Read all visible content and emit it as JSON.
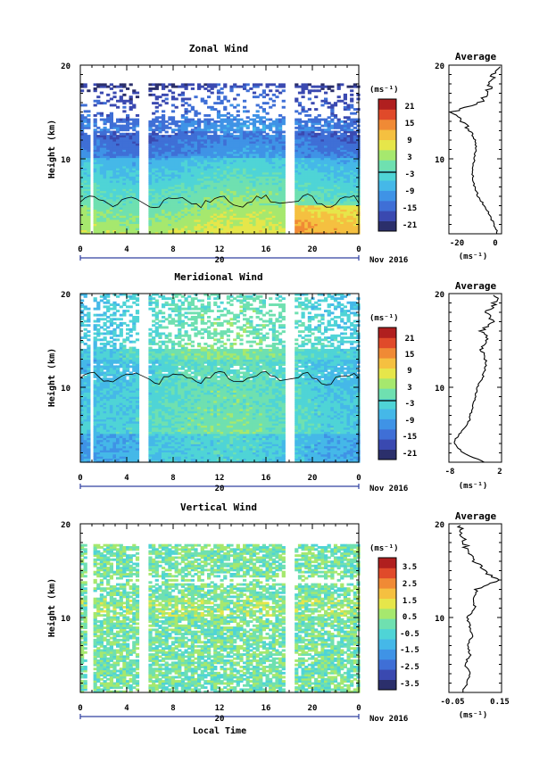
{
  "colors": {
    "scale": [
      "#2b2f6b",
      "#3a49b0",
      "#3f6fd6",
      "#3f93e6",
      "#45b8e8",
      "#4fd4d6",
      "#6fe0b0",
      "#a6e86e",
      "#e6e64a",
      "#f5c040",
      "#f08a35",
      "#e04a2a",
      "#b01f1f"
    ],
    "contour": "#000000",
    "frame": "#000000",
    "time_bar": "#3040a0"
  },
  "chart_data": [
    {
      "type": "heatmap",
      "title": "Zonal Wind",
      "ylabel": "Height (km)",
      "units_label": "(ms⁻¹)",
      "x_ticks": [
        "0",
        "4",
        "8",
        "12",
        "16",
        "20",
        "0"
      ],
      "y_ticks": [
        "20",
        "10"
      ],
      "ylim": [
        2,
        20
      ],
      "xlim_hours": [
        0,
        24
      ],
      "data_gaps_hours": [
        [
          0.9,
          1.0
        ],
        [
          5.1,
          5.8
        ],
        [
          17.6,
          18.6
        ]
      ],
      "colorbar_labels": [
        "21",
        "15",
        "9",
        "3",
        "-3",
        "-9",
        "-15",
        "-21"
      ],
      "colorbar_range": [
        -24,
        24
      ],
      "date_label": "20",
      "month_label": "Nov 2016",
      "profile": {
        "title": "Average",
        "xlabel": "(ms⁻¹)",
        "x_ticks": [
          "-20",
          "0"
        ],
        "xlim": [
          -24,
          3
        ],
        "height_km": [
          2,
          3,
          4,
          5,
          6,
          7,
          8,
          9,
          10,
          11,
          12,
          13,
          14,
          15,
          16,
          17,
          18,
          19,
          20
        ],
        "values": [
          1,
          -1,
          -3,
          -6,
          -9,
          -11,
          -11.5,
          -12,
          -11,
          -10,
          -10.5,
          -13,
          -17,
          -22,
          -8,
          -4,
          -3,
          -1,
          1
        ]
      }
    },
    {
      "type": "heatmap",
      "title": "Meridional Wind",
      "ylabel": "Height (km)",
      "units_label": "(ms⁻¹)",
      "x_ticks": [
        "0",
        "4",
        "8",
        "12",
        "16",
        "20",
        "0"
      ],
      "y_ticks": [
        "20",
        "10"
      ],
      "ylim": [
        2,
        20
      ],
      "xlim_hours": [
        0,
        24
      ],
      "data_gaps_hours": [
        [
          0.9,
          1.0
        ],
        [
          5.1,
          5.8
        ],
        [
          17.6,
          18.6
        ]
      ],
      "colorbar_labels": [
        "21",
        "15",
        "9",
        "3",
        "-3",
        "-9",
        "-15",
        "-21"
      ],
      "colorbar_range": [
        -24,
        24
      ],
      "date_label": "20",
      "month_label": "Nov 2016",
      "profile": {
        "title": "Average",
        "xlabel": "(ms⁻¹)",
        "x_ticks": [
          "-8",
          "2"
        ],
        "xlim": [
          -8,
          3
        ],
        "height_km": [
          2,
          3,
          4,
          5,
          6,
          7,
          8,
          9,
          10,
          11,
          12,
          13,
          14,
          15,
          16,
          17,
          18,
          19,
          20
        ],
        "values": [
          -0.5,
          -5,
          -7,
          -6,
          -4,
          -3.5,
          -3,
          -2.5,
          -2,
          -1,
          -0.5,
          0,
          -1,
          0,
          -1,
          1,
          0,
          1.5,
          2
        ]
      }
    },
    {
      "type": "heatmap",
      "title": "Vertical Wind",
      "ylabel": "Height (km)",
      "xlabel": "Local Time",
      "units_label": "(ms⁻¹)",
      "x_ticks": [
        "0",
        "4",
        "8",
        "12",
        "16",
        "20",
        "0"
      ],
      "y_ticks": [
        "20",
        "10"
      ],
      "ylim": [
        2,
        20
      ],
      "xlim_hours": [
        0,
        24
      ],
      "data_gaps_hours": [
        [
          0.6,
          1.0
        ],
        [
          5.1,
          5.8
        ],
        [
          17.6,
          18.6
        ]
      ],
      "colorbar_labels": [
        "3.5",
        "2.5",
        "1.5",
        "0.5",
        "-0.5",
        "-1.5",
        "-2.5",
        "-3.5"
      ],
      "colorbar_range": [
        -4,
        4
      ],
      "date_label": "20",
      "month_label": "Nov 2016",
      "profile": {
        "title": "Average",
        "xlabel": "(ms⁻¹)",
        "x_ticks": [
          "-0.05",
          "0.15"
        ],
        "xlim": [
          -0.05,
          0.15
        ],
        "height_km": [
          2,
          3,
          4,
          5,
          6,
          7,
          8,
          9,
          10,
          11,
          12,
          13,
          14,
          15,
          16,
          17,
          18,
          19,
          20
        ],
        "values": [
          0,
          0.02,
          0.03,
          0.01,
          0.03,
          0.02,
          0.04,
          0.03,
          0.02,
          0.05,
          0.04,
          0.06,
          0.14,
          0.08,
          0.05,
          0.02,
          0.01,
          0.0,
          -0.01
        ]
      }
    }
  ]
}
